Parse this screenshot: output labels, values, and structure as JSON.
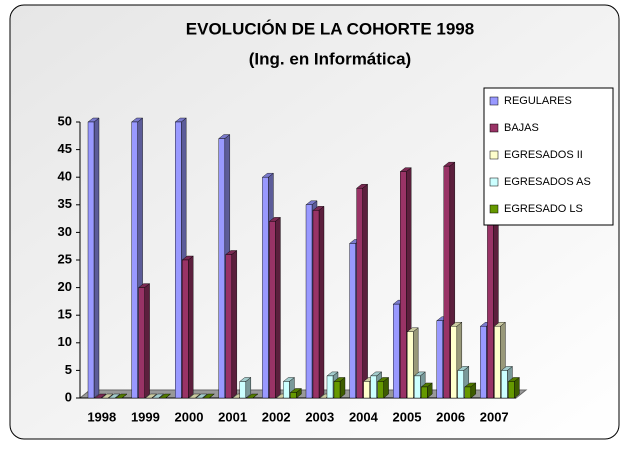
{
  "chart_data": {
    "type": "bar",
    "title": "EVOLUCIÓN DE LA COHORTE 1998",
    "subtitle": "(Ing. en Informática)",
    "categories": [
      "1998",
      "1999",
      "2000",
      "2001",
      "2002",
      "2003",
      "2004",
      "2005",
      "2006",
      "2007"
    ],
    "series": [
      {
        "name": "REGULARES",
        "color": "#9999ff",
        "values": [
          50,
          50,
          50,
          47,
          40,
          35,
          28,
          17,
          14,
          13
        ]
      },
      {
        "name": "BAJAS",
        "color": "#993366",
        "values": [
          0,
          20,
          25,
          26,
          32,
          34,
          38,
          41,
          42,
          37
        ]
      },
      {
        "name": "EGRESADOS II",
        "color": "#ffffcc",
        "values": [
          0,
          0,
          0,
          0,
          0,
          0,
          3,
          12,
          13,
          13
        ]
      },
      {
        "name": "EGRESADOS AS",
        "color": "#ccffff",
        "values": [
          0,
          0,
          0,
          3,
          3,
          4,
          4,
          4,
          5,
          5
        ]
      },
      {
        "name": "EGRESADO LS",
        "color": "#669900",
        "values": [
          0,
          0,
          0,
          0,
          1,
          3,
          3,
          2,
          2,
          3
        ]
      }
    ],
    "ylim": [
      0,
      50
    ],
    "yticks": [
      0,
      5,
      10,
      15,
      20,
      25,
      30,
      35,
      40,
      45,
      50
    ],
    "legend": "right"
  }
}
